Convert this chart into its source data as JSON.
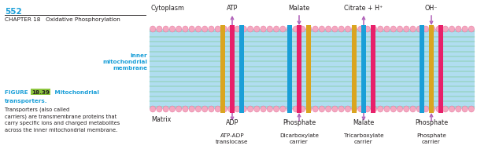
{
  "bg_color": "#ffffff",
  "page_num": "552",
  "chapter_text": "CHAPTER 18   Oxidative Phosphorylation",
  "figure_label": "FIGURE ",
  "figure_num": "18.39",
  "figure_num_bg": "#8dc63f",
  "figure_title": " Mitochondrial\ntransporters.",
  "figure_body": "Transporters (also called\ncarriers) are transmembrane proteins that\ncarry specific ions and charged metabolites\nacross the inner mitochondrial membrane.",
  "label_color": "#1a9fd8",
  "dark_text_color": "#231f20",
  "membrane_label": "Inner\nmitochondrial\nmembrane",
  "cytoplasm_label": "Cytoplasm",
  "matrix_label": "Matrix",
  "top_labels": [
    "ATP",
    "Malate",
    "Citrate + H⁺",
    "OH⁻"
  ],
  "bottom_labels_row1": [
    "ADP",
    "Phosphate",
    "Malate",
    "Phosphate"
  ],
  "bottom_labels_row2": [
    "ATP-ADP\ntranslocase",
    "Dicarboxylate\ncarrier",
    "Tricarboxylate\ncarrier",
    "Phosphate\ncarrier"
  ],
  "carrier_colors": [
    [
      "#daa520",
      "#e8206a",
      "#1a9fd8"
    ],
    [
      "#1a9fd8",
      "#e8206a",
      "#daa520"
    ],
    [
      "#daa520",
      "#1a9fd8",
      "#e8206a"
    ],
    [
      "#1a9fd8",
      "#daa520",
      "#e8206a"
    ]
  ],
  "arrow_color": "#b060b8",
  "green_line_color": "#60c060",
  "lipid_color": "#f4a8c0",
  "lipid_edge_color": "#e06090",
  "membrane_bg_color": "#b0ddf0"
}
